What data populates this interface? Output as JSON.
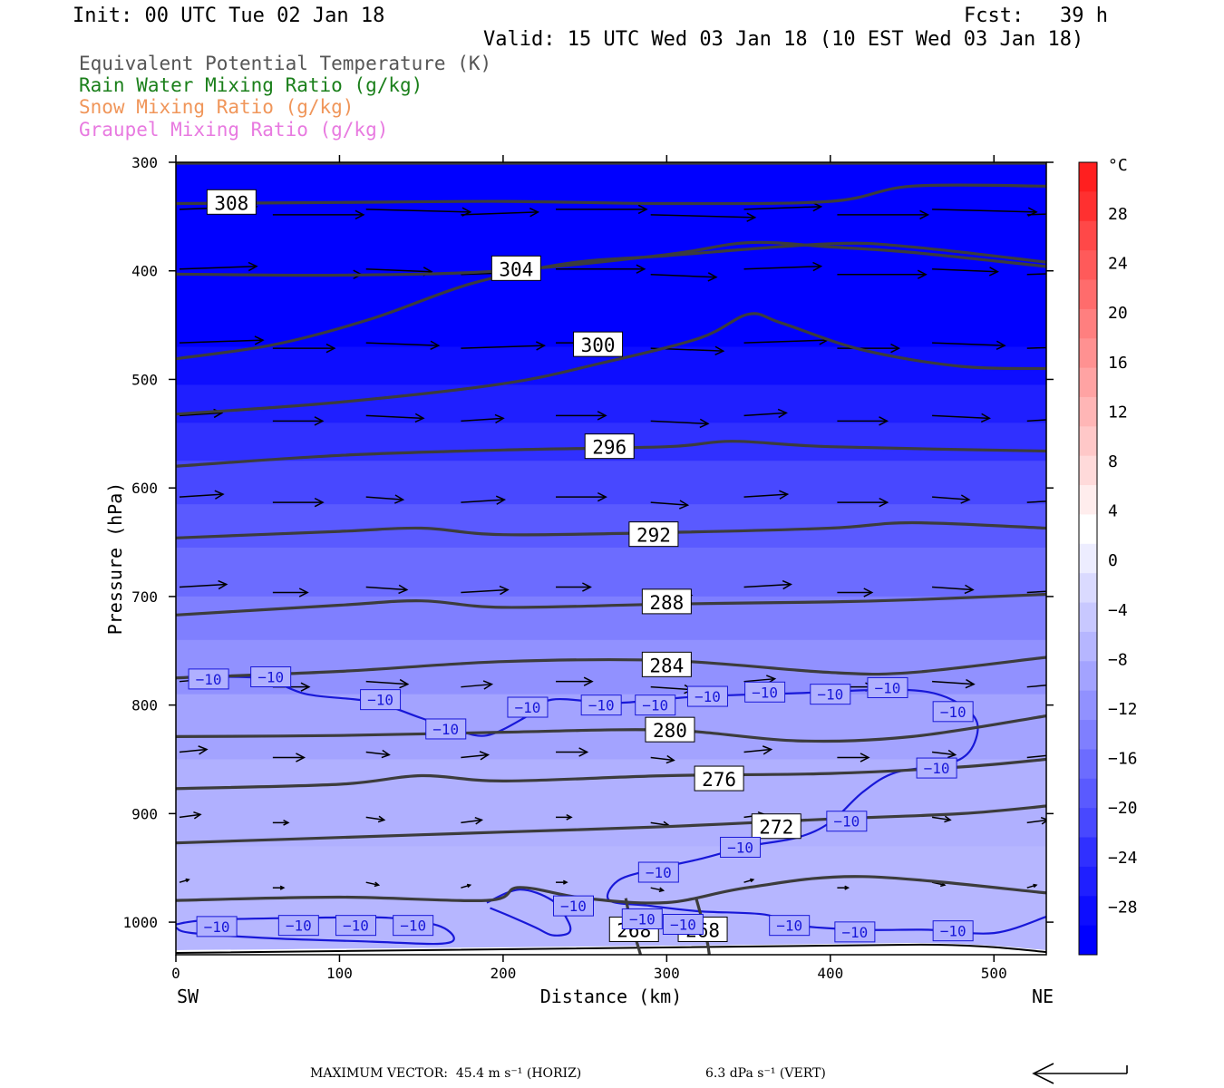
{
  "header": {
    "init": "Init: 00 UTC Tue 02 Jan 18",
    "fcst": "Fcst:   39 h",
    "valid": "Valid: 15 UTC Wed 03 Jan 18 (10 EST Wed 03 Jan 18)"
  },
  "legend_lines": [
    {
      "text": "Equivalent Potential Temperature (K)",
      "color": "#555555"
    },
    {
      "text": "Rain Water Mixing Ratio (g/kg)",
      "color": "#1a7f1a"
    },
    {
      "text": "Snow Mixing Ratio (g/kg)",
      "color": "#f0965a"
    },
    {
      "text": "Graupel Mixing Ratio (g/kg)",
      "color": "#e87ae0"
    }
  ],
  "footer": {
    "max_vector": "MAXIMUM VECTOR:  45.4 m s⁻¹ (HORIZ)",
    "vert": "6.3 dPa s⁻¹ (VERT)"
  },
  "chart_data": {
    "type": "heatmap",
    "xlabel": "Distance (km)",
    "ylabel": "Pressure (hPa)",
    "xlim": [
      0,
      532
    ],
    "ylim": [
      1030,
      300
    ],
    "x_ticks": [
      0,
      100,
      200,
      300,
      400,
      500
    ],
    "y_ticks": [
      300,
      400,
      500,
      600,
      700,
      800,
      900,
      1000
    ],
    "x_end_labels": {
      "left": "SW",
      "right": "NE"
    },
    "colorbar": {
      "unit": "°C",
      "tick_labels": [
        "28",
        "24",
        "20",
        "16",
        "12",
        "8",
        "4",
        "0",
        "−4",
        "−8",
        "−12",
        "−16",
        "−20",
        "−24",
        "−28"
      ],
      "colors_top_to_bottom": [
        "#ff1f1f",
        "#ff3030",
        "#ff4848",
        "#ff5a5a",
        "#ff6c6c",
        "#ff7f7f",
        "#ff9191",
        "#ffa3a3",
        "#ffb6b6",
        "#ffc8c8",
        "#ffdada",
        "#ffeded",
        "#ffffff",
        "#ededff",
        "#dadaff",
        "#c8c8ff",
        "#b6b6ff",
        "#a3a3ff",
        "#9191ff",
        "#7f7fff",
        "#6c6cff",
        "#5a5aff",
        "#4848ff",
        "#3030ff",
        "#1f1fff",
        "#0d0dff",
        "#0000ff"
      ]
    },
    "theta_e_contours": [
      {
        "label": "308",
        "points": [
          [
            0,
            338
          ],
          [
            100,
            337
          ],
          [
            200,
            336
          ],
          [
            300,
            338
          ],
          [
            400,
            336
          ],
          [
            450,
            322
          ],
          [
            532,
            322
          ]
        ]
      },
      {
        "label": "304",
        "points": [
          [
            0,
            403
          ],
          [
            100,
            404
          ],
          [
            200,
            400
          ],
          [
            300,
            385
          ],
          [
            350,
            374
          ],
          [
            400,
            378
          ],
          [
            450,
            383
          ],
          [
            532,
            396
          ]
        ]
      },
      {
        "label": "300",
        "points": [
          [
            0,
            481
          ],
          [
            60,
            468
          ],
          [
            120,
            444
          ],
          [
            180,
            412
          ],
          [
            240,
            393
          ],
          [
            300,
            386
          ],
          [
            400,
            375
          ],
          [
            450,
            378
          ],
          [
            532,
            392
          ]
        ]
      },
      {
        "label": "300",
        "points": [
          [
            0,
            532
          ],
          [
            100,
            521
          ],
          [
            200,
            504
          ],
          [
            260,
            485
          ],
          [
            320,
            462
          ],
          [
            350,
            440
          ],
          [
            370,
            448
          ],
          [
            420,
            473
          ],
          [
            480,
            488
          ],
          [
            532,
            490
          ]
        ]
      },
      {
        "label": "296",
        "points": [
          [
            0,
            580
          ],
          [
            100,
            570
          ],
          [
            200,
            565
          ],
          [
            300,
            562
          ],
          [
            340,
            557
          ],
          [
            400,
            562
          ],
          [
            532,
            566
          ]
        ]
      },
      {
        "label": "292",
        "points": [
          [
            0,
            646
          ],
          [
            100,
            640
          ],
          [
            150,
            637
          ],
          [
            200,
            643
          ],
          [
            300,
            641
          ],
          [
            400,
            637
          ],
          [
            450,
            632
          ],
          [
            532,
            637
          ]
        ]
      },
      {
        "label": "288",
        "points": [
          [
            0,
            717
          ],
          [
            100,
            708
          ],
          [
            150,
            704
          ],
          [
            200,
            710
          ],
          [
            300,
            707
          ],
          [
            400,
            705
          ],
          [
            450,
            703
          ],
          [
            532,
            698
          ]
        ]
      },
      {
        "label": "284",
        "points": [
          [
            0,
            775
          ],
          [
            100,
            769
          ],
          [
            200,
            760
          ],
          [
            300,
            759
          ],
          [
            400,
            770
          ],
          [
            450,
            770
          ],
          [
            532,
            756
          ]
        ]
      },
      {
        "label": "280",
        "points": [
          [
            0,
            829
          ],
          [
            100,
            828
          ],
          [
            200,
            825
          ],
          [
            300,
            823
          ],
          [
            380,
            833
          ],
          [
            450,
            829
          ],
          [
            532,
            810
          ]
        ]
      },
      {
        "label": "276",
        "points": [
          [
            0,
            877
          ],
          [
            100,
            873
          ],
          [
            150,
            865
          ],
          [
            200,
            870
          ],
          [
            300,
            865
          ],
          [
            400,
            863
          ],
          [
            480,
            857
          ],
          [
            532,
            850
          ]
        ]
      },
      {
        "label": "272",
        "points": [
          [
            0,
            927
          ],
          [
            100,
            922
          ],
          [
            200,
            917
          ],
          [
            300,
            912
          ],
          [
            400,
            905
          ],
          [
            480,
            900
          ],
          [
            532,
            893
          ]
        ]
      },
      {
        "label": "268",
        "points": [
          [
            0,
            980
          ],
          [
            100,
            977
          ],
          [
            190,
            980
          ],
          [
            210,
            968
          ],
          [
            250,
            978
          ],
          [
            300,
            982
          ],
          [
            350,
            968
          ],
          [
            420,
            958
          ],
          [
            532,
            973
          ]
        ]
      }
    ],
    "isotherm_minus10_label": "−10",
    "isotherm_minus10": [
      [
        [
          0,
          775
        ],
        [
          50,
          775
        ],
        [
          80,
          790
        ],
        [
          120,
          797
        ],
        [
          150,
          812
        ],
        [
          170,
          822
        ],
        [
          190,
          828
        ],
        [
          215,
          810
        ],
        [
          230,
          795
        ],
        [
          270,
          798
        ],
        [
          320,
          792
        ],
        [
          380,
          789
        ],
        [
          430,
          786
        ],
        [
          460,
          788
        ],
        [
          480,
          800
        ],
        [
          490,
          818
        ],
        [
          485,
          843
        ],
        [
          470,
          855
        ],
        [
          440,
          862
        ],
        [
          420,
          880
        ],
        [
          400,
          908
        ],
        [
          380,
          922
        ],
        [
          350,
          930
        ],
        [
          320,
          942
        ],
        [
          290,
          952
        ],
        [
          270,
          962
        ],
        [
          265,
          980
        ],
        [
          290,
          985
        ],
        [
          320,
          990
        ],
        [
          360,
          993
        ],
        [
          380,
          1003
        ],
        [
          420,
          1007
        ],
        [
          460,
          1007
        ],
        [
          500,
          1010
        ],
        [
          532,
          995
        ]
      ],
      [
        [
          0,
          1002
        ],
        [
          20,
          998
        ],
        [
          80,
          996
        ],
        [
          130,
          996
        ],
        [
          160,
          1003
        ],
        [
          170,
          1015
        ],
        [
          160,
          1020
        ],
        [
          120,
          1018
        ],
        [
          60,
          1015
        ],
        [
          10,
          1010
        ],
        [
          0,
          1005
        ]
      ],
      [
        [
          190,
          982
        ],
        [
          210,
          970
        ],
        [
          230,
          980
        ],
        [
          240,
          1000
        ],
        [
          240,
          1010
        ],
        [
          230,
          1012
        ],
        [
          220,
          1005
        ],
        [
          205,
          995
        ],
        [
          192,
          987
        ]
      ]
    ],
    "minus10_label_positions": [
      [
        20,
        776
      ],
      [
        58,
        774
      ],
      [
        125,
        795
      ],
      [
        165,
        822
      ],
      [
        215,
        802
      ],
      [
        260,
        800
      ],
      [
        293,
        800
      ],
      [
        325,
        792
      ],
      [
        360,
        788
      ],
      [
        400,
        790
      ],
      [
        435,
        784
      ],
      [
        475,
        806
      ],
      [
        465,
        858
      ],
      [
        410,
        907
      ],
      [
        345,
        931
      ],
      [
        295,
        954
      ],
      [
        243,
        985
      ],
      [
        285,
        997
      ],
      [
        310,
        1002
      ],
      [
        25,
        1004
      ],
      [
        75,
        1003
      ],
      [
        110,
        1003
      ],
      [
        145,
        1003
      ],
      [
        375,
        1003
      ],
      [
        415,
        1009
      ],
      [
        475,
        1008
      ]
    ],
    "label_268_positions": [
      [
        280,
        1007
      ],
      [
        322,
        1007
      ]
    ]
  }
}
